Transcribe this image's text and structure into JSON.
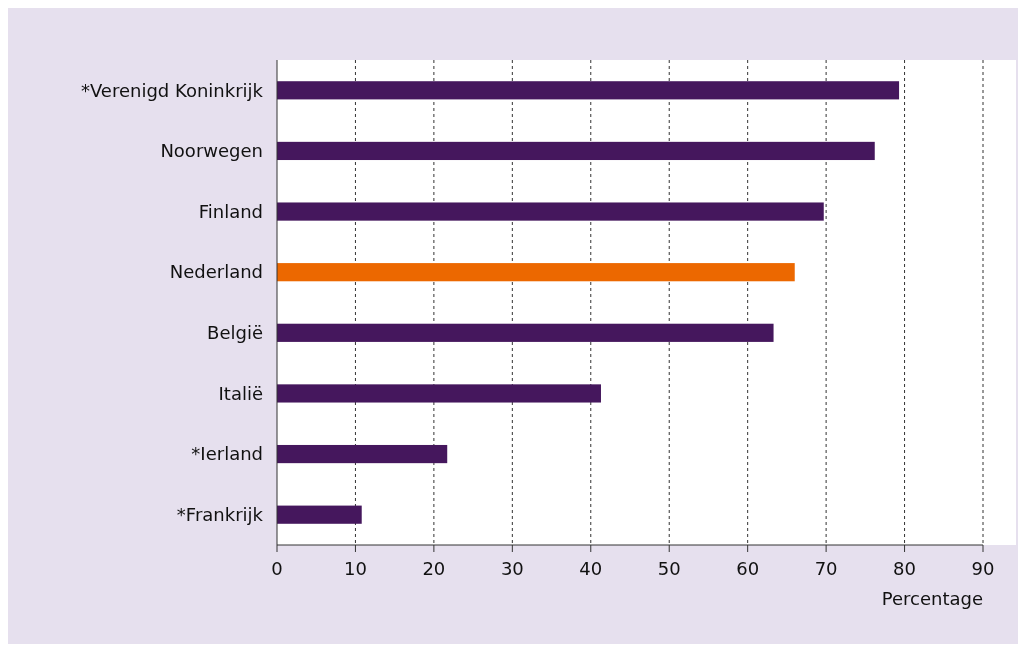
{
  "chart_data": {
    "type": "bar",
    "orientation": "horizontal",
    "xlabel": "Percentage",
    "categories": [
      "*Verenigd Koninkrijk",
      "Noorwegen",
      "Finland",
      "Nederland",
      "België",
      "Italië",
      "*Ierland",
      "*Frankrijk"
    ],
    "values": [
      79.3,
      76.2,
      69.7,
      66.0,
      63.3,
      41.3,
      21.7,
      10.8
    ],
    "colors": [
      "#45175d",
      "#45175d",
      "#45175d",
      "#ec6800",
      "#45175d",
      "#45175d",
      "#45175d",
      "#45175d"
    ],
    "xlim": [
      0,
      90
    ],
    "xticks": [
      0,
      10,
      20,
      30,
      40,
      50,
      60,
      70,
      80,
      90
    ],
    "grid": "x"
  }
}
